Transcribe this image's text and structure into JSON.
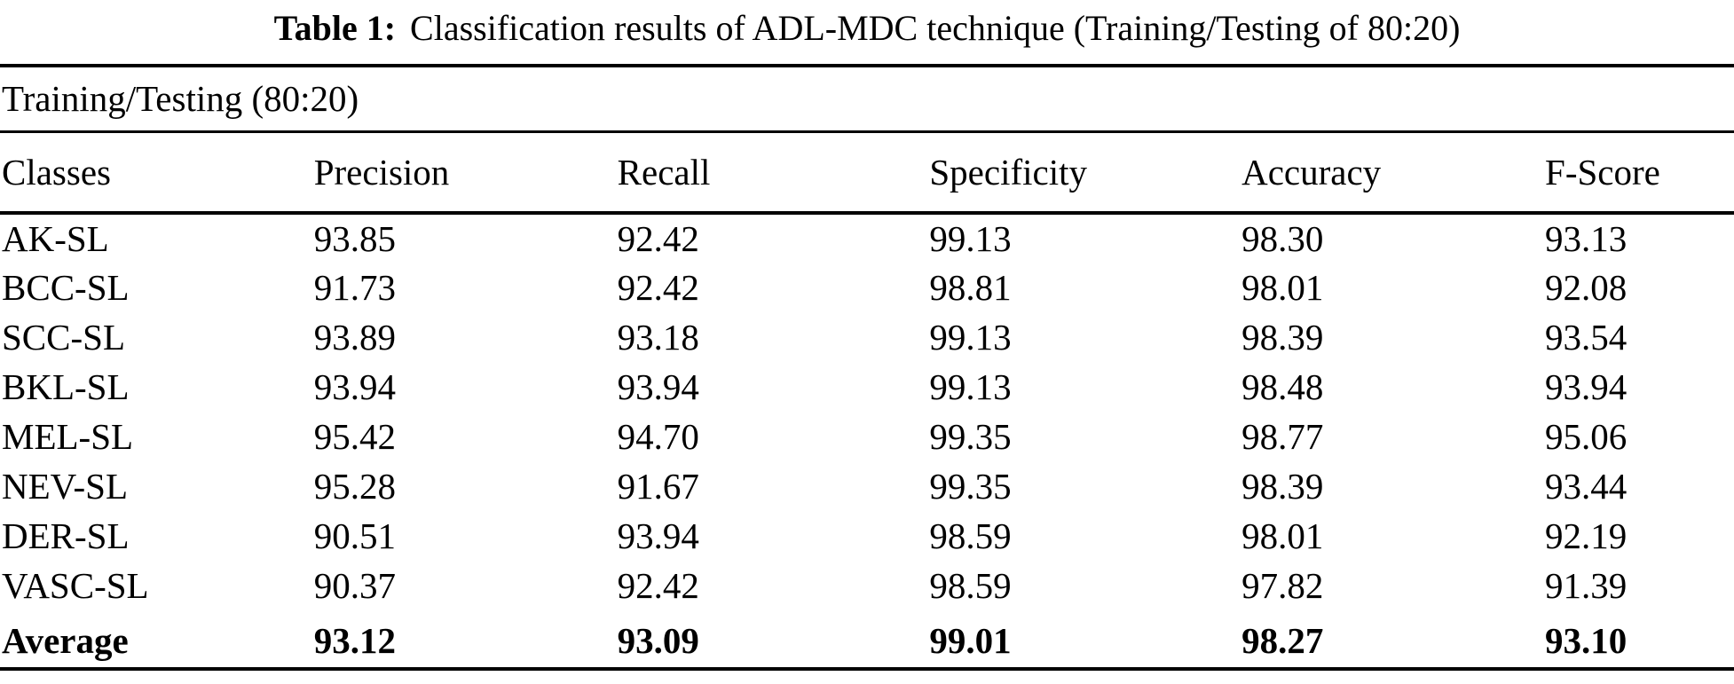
{
  "caption": {
    "label": "Table 1:",
    "text": "Classification results of ADL-MDC technique (Training/Testing of 80:20)"
  },
  "table": {
    "span_header": "Training/Testing (80:20)",
    "columns": [
      "Classes",
      "Precision",
      "Recall",
      "Specificity",
      "Accuracy",
      "F-Score"
    ],
    "rows": [
      {
        "class": "AK-SL",
        "values": [
          "93.85",
          "92.42",
          "99.13",
          "98.30",
          "93.13"
        ],
        "bold": false
      },
      {
        "class": "BCC-SL",
        "values": [
          "91.73",
          "92.42",
          "98.81",
          "98.01",
          "92.08"
        ],
        "bold": false
      },
      {
        "class": "SCC-SL",
        "values": [
          "93.89",
          "93.18",
          "99.13",
          "98.39",
          "93.54"
        ],
        "bold": false
      },
      {
        "class": "BKL-SL",
        "values": [
          "93.94",
          "93.94",
          "99.13",
          "98.48",
          "93.94"
        ],
        "bold": false
      },
      {
        "class": "MEL-SL",
        "values": [
          "95.42",
          "94.70",
          "99.35",
          "98.77",
          "95.06"
        ],
        "bold": false
      },
      {
        "class": "NEV-SL",
        "values": [
          "95.28",
          "91.67",
          "99.35",
          "98.39",
          "93.44"
        ],
        "bold": false
      },
      {
        "class": "DER-SL",
        "values": [
          "90.51",
          "93.94",
          "98.59",
          "98.01",
          "92.19"
        ],
        "bold": false
      },
      {
        "class": "VASC-SL",
        "values": [
          "90.37",
          "92.42",
          "98.59",
          "97.82",
          "91.39"
        ],
        "bold": false
      },
      {
        "class": "Average",
        "values": [
          "93.12",
          "93.09",
          "99.01",
          "98.27",
          "93.10"
        ],
        "bold": true
      }
    ]
  },
  "colors": {
    "background": "#ffffff",
    "text": "#000000",
    "rule": "#000000"
  }
}
